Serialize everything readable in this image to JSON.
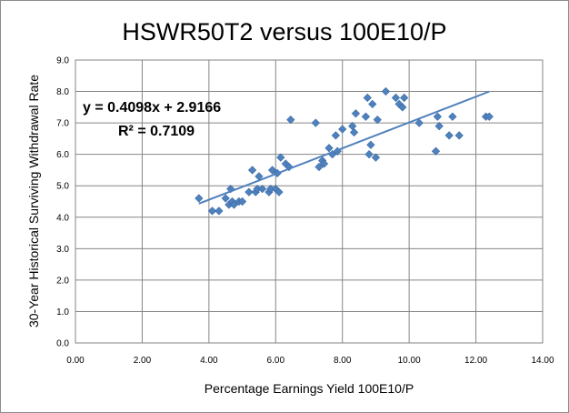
{
  "chart_data": {
    "type": "scatter",
    "title": "HSWR50T2 versus 100E10/P",
    "xlabel": "Percentage Earnings Yield 100E10/P",
    "ylabel": "30-Year Historical Surviving Withdrawal Rate",
    "xlim": [
      0,
      14
    ],
    "ylim": [
      0,
      9
    ],
    "xticks": [
      "0.00",
      "2.00",
      "4.00",
      "6.00",
      "8.00",
      "10.00",
      "12.00",
      "14.00"
    ],
    "yticks": [
      "0.0",
      "1.0",
      "2.0",
      "3.0",
      "4.0",
      "5.0",
      "6.0",
      "7.0",
      "8.0",
      "9.0"
    ],
    "grid": true,
    "marker_color": "#4f81bd",
    "trendline": {
      "slope": 0.4098,
      "intercept": 2.9166,
      "x_range": [
        3.7,
        12.4
      ],
      "color": "#4f81bd"
    },
    "equation": "y = 0.4098x + 2.9166",
    "r_squared": "R² = 0.7109",
    "points": [
      [
        3.7,
        4.6
      ],
      [
        4.1,
        4.2
      ],
      [
        4.3,
        4.2
      ],
      [
        4.5,
        4.6
      ],
      [
        4.6,
        4.4
      ],
      [
        4.65,
        4.9
      ],
      [
        4.7,
        4.5
      ],
      [
        4.75,
        4.4
      ],
      [
        4.9,
        4.5
      ],
      [
        5.0,
        4.5
      ],
      [
        5.2,
        4.8
      ],
      [
        5.3,
        5.5
      ],
      [
        5.4,
        4.8
      ],
      [
        5.45,
        4.9
      ],
      [
        5.5,
        5.3
      ],
      [
        5.6,
        4.9
      ],
      [
        5.8,
        4.8
      ],
      [
        5.85,
        4.9
      ],
      [
        5.9,
        5.5
      ],
      [
        6.0,
        4.9
      ],
      [
        6.05,
        5.4
      ],
      [
        6.1,
        4.8
      ],
      [
        6.15,
        5.9
      ],
      [
        6.3,
        5.7
      ],
      [
        6.4,
        5.6
      ],
      [
        6.45,
        7.1
      ],
      [
        7.2,
        7.0
      ],
      [
        7.3,
        5.6
      ],
      [
        7.4,
        5.8
      ],
      [
        7.45,
        5.7
      ],
      [
        7.6,
        6.2
      ],
      [
        7.7,
        6.0
      ],
      [
        7.8,
        6.6
      ],
      [
        7.85,
        6.1
      ],
      [
        8.0,
        6.8
      ],
      [
        8.3,
        6.9
      ],
      [
        8.35,
        6.7
      ],
      [
        8.4,
        7.3
      ],
      [
        8.7,
        7.2
      ],
      [
        8.75,
        7.8
      ],
      [
        8.8,
        6.0
      ],
      [
        8.85,
        6.3
      ],
      [
        8.9,
        7.6
      ],
      [
        9.0,
        5.9
      ],
      [
        9.05,
        7.1
      ],
      [
        9.3,
        8.0
      ],
      [
        9.6,
        7.8
      ],
      [
        9.7,
        7.6
      ],
      [
        9.8,
        7.5
      ],
      [
        9.85,
        7.8
      ],
      [
        10.3,
        7.0
      ],
      [
        10.8,
        6.1
      ],
      [
        10.85,
        7.2
      ],
      [
        10.9,
        6.9
      ],
      [
        11.2,
        6.6
      ],
      [
        11.3,
        7.2
      ],
      [
        11.5,
        6.6
      ],
      [
        12.3,
        7.2
      ],
      [
        12.4,
        7.2
      ]
    ]
  }
}
